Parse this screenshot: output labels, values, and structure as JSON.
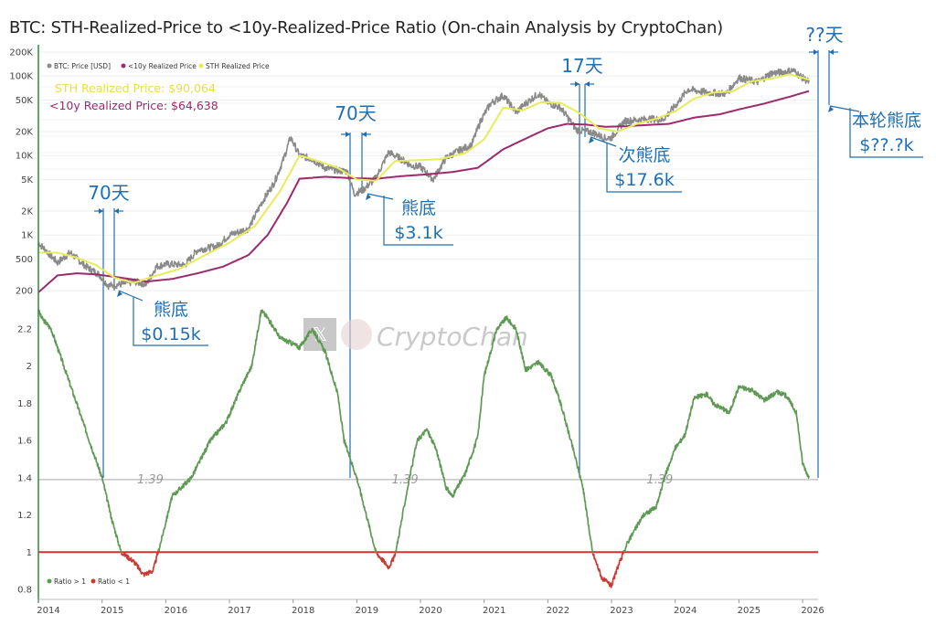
{
  "title": "BTC: STH-Realized-Price to <10y-Realized-Price Ratio (On-chain Analysis by CryptoChan)",
  "colors": {
    "price": "#8a8a8a",
    "sth": "#e8ec5a",
    "lt10y": "#9b2a6e",
    "ratio_up": "#5f9a55",
    "ratio_down": "#c93a32",
    "ref_line": "#d4332c",
    "annotation": "#1f6fb2",
    "sth_label": "#e6e04a",
    "lt10y_label": "#9b2a6e"
  },
  "watermark": {
    "text": "CryptoChan",
    "icon": "x-logo-icon"
  },
  "price_labels": {
    "sth": "STH Realized Price: $90,064",
    "lt10y": "<10y Realized Price: $64,638"
  },
  "annotations": {
    "d70_2015": "70天",
    "d70_2018": "70天",
    "d17_2022": "17天",
    "dqq_2026": "??天",
    "bottom_2015_a": "熊底",
    "bottom_2015_b": "$0.15k",
    "bottom_2018_a": "熊底",
    "bottom_2018_b": "$3.1k",
    "bottom_2022_a": "次熊底",
    "bottom_2022_b": "$17.6k",
    "bottom_now_a": "本轮熊底",
    "bottom_now_b": "$??.?k"
  },
  "chart_data": [
    {
      "type": "line",
      "panel": "price",
      "yscale": "log",
      "ylim": [
        150,
        200000
      ],
      "y_ticks": [
        "200K",
        "100K",
        "50K",
        "20K",
        "10K",
        "5K",
        "2K",
        "1K",
        "500",
        "200"
      ],
      "legend": [
        "BTC: Price [USD]",
        "<10y Realized Price",
        "STH Realized Price"
      ],
      "legend_placement": "top-left",
      "series": [
        {
          "name": "BTC: Price [USD]",
          "x": [
            2014.0,
            2014.15,
            2014.3,
            2014.5,
            2014.75,
            2014.95,
            2015.1,
            2015.3,
            2015.5,
            2015.7,
            2015.85,
            2016.0,
            2016.3,
            2016.5,
            2016.8,
            2017.0,
            2017.3,
            2017.5,
            2017.7,
            2017.85,
            2017.96,
            2018.1,
            2018.3,
            2018.5,
            2018.7,
            2018.85,
            2018.96,
            2019.1,
            2019.3,
            2019.5,
            2019.7,
            2019.85,
            2020.0,
            2020.2,
            2020.4,
            2020.6,
            2020.8,
            2020.95,
            2021.1,
            2021.3,
            2021.5,
            2021.65,
            2021.85,
            2022.0,
            2022.2,
            2022.45,
            2022.7,
            2022.9,
            2023.0,
            2023.2,
            2023.4,
            2023.6,
            2023.8,
            2024.0,
            2024.2,
            2024.5,
            2024.8,
            2025.0,
            2025.3,
            2025.5,
            2025.7,
            2025.85,
            2026.0,
            2026.1
          ],
          "values": [
            800,
            600,
            450,
            600,
            400,
            320,
            230,
            240,
            260,
            240,
            400,
            430,
            420,
            650,
            720,
            1000,
            1200,
            2500,
            4500,
            9000,
            17000,
            10000,
            9000,
            7000,
            6500,
            6300,
            3300,
            3700,
            5200,
            11000,
            9000,
            7500,
            7200,
            5000,
            9300,
            11500,
            13500,
            28000,
            45000,
            57000,
            35000,
            45000,
            60000,
            46000,
            40000,
            21000,
            19500,
            16500,
            16800,
            27000,
            28000,
            29000,
            28000,
            42000,
            68000,
            62000,
            60000,
            95000,
            84000,
            108000,
            112000,
            118000,
            95000,
            84000
          ]
        },
        {
          "name": "STH Realized Price",
          "x": [
            2014.0,
            2014.3,
            2014.6,
            2014.9,
            2015.2,
            2015.5,
            2015.8,
            2016.2,
            2016.6,
            2017.0,
            2017.4,
            2017.8,
            2018.1,
            2018.4,
            2018.7,
            2019.0,
            2019.3,
            2019.6,
            2019.9,
            2020.3,
            2020.7,
            2021.0,
            2021.3,
            2021.6,
            2021.9,
            2022.2,
            2022.5,
            2022.8,
            2023.1,
            2023.4,
            2023.7,
            2024.0,
            2024.3,
            2024.6,
            2024.9,
            2025.2,
            2025.5,
            2025.8,
            2026.1
          ],
          "values": [
            600,
            600,
            520,
            420,
            290,
            250,
            300,
            370,
            550,
            800,
            1300,
            3600,
            10000,
            8500,
            7000,
            5000,
            4800,
            8500,
            8700,
            9000,
            10700,
            16000,
            40000,
            37000,
            47000,
            46000,
            34000,
            22000,
            20000,
            25000,
            29000,
            36000,
            52000,
            62000,
            64000,
            86000,
            92000,
            105000,
            90064
          ]
        },
        {
          "name": "<10y Realized Price",
          "x": [
            2014.0,
            2014.3,
            2014.6,
            2014.9,
            2015.3,
            2015.7,
            2016.1,
            2016.5,
            2016.9,
            2017.3,
            2017.6,
            2017.9,
            2018.1,
            2018.5,
            2018.9,
            2019.3,
            2019.7,
            2020.1,
            2020.5,
            2020.9,
            2021.3,
            2021.7,
            2022.0,
            2022.3,
            2022.6,
            2022.9,
            2023.2,
            2023.6,
            2023.9,
            2024.3,
            2024.7,
            2025.0,
            2025.4,
            2025.8,
            2026.1
          ],
          "values": [
            190,
            310,
            330,
            320,
            290,
            260,
            280,
            330,
            400,
            560,
            1000,
            2500,
            5100,
            5400,
            5200,
            5100,
            5500,
            5800,
            6200,
            7000,
            12000,
            17000,
            22000,
            25000,
            24500,
            23000,
            23300,
            24300,
            25000,
            30000,
            33000,
            38000,
            45000,
            55000,
            64638
          ]
        }
      ]
    },
    {
      "type": "line",
      "panel": "ratio",
      "ylim": [
        0.78,
        2.42
      ],
      "y_ticks": [
        "2.2",
        "2",
        "1.8",
        "1.6",
        "1.4",
        "1.2",
        "1",
        "0.8"
      ],
      "legend": [
        "Ratio > 1",
        "Ratio < 1"
      ],
      "legend_placement": "bottom-left",
      "reference_lines": [
        {
          "value": 1.0,
          "color": "#d4332c"
        },
        {
          "value": 1.39,
          "label": "1.39"
        }
      ],
      "series": [
        {
          "name": "Ratio",
          "x": [
            2014.0,
            2014.05,
            2014.2,
            2014.4,
            2014.6,
            2014.8,
            2015.0,
            2015.15,
            2015.3,
            2015.5,
            2015.65,
            2015.8,
            2015.92,
            2016.1,
            2016.4,
            2016.7,
            2016.95,
            2017.2,
            2017.35,
            2017.5,
            2017.6,
            2017.8,
            2018.0,
            2018.1,
            2018.3,
            2018.5,
            2018.7,
            2018.8,
            2019.0,
            2019.15,
            2019.3,
            2019.5,
            2019.6,
            2019.8,
            2019.95,
            2020.1,
            2020.25,
            2020.4,
            2020.5,
            2020.7,
            2020.9,
            2021.0,
            2021.2,
            2021.35,
            2021.5,
            2021.65,
            2021.85,
            2022.05,
            2022.2,
            2022.4,
            2022.55,
            2022.7,
            2022.85,
            2023.0,
            2023.1,
            2023.25,
            2023.5,
            2023.7,
            2023.85,
            2024.0,
            2024.15,
            2024.3,
            2024.5,
            2024.6,
            2024.85,
            2025.0,
            2025.2,
            2025.4,
            2025.6,
            2025.75,
            2025.9,
            2026.0,
            2026.1
          ],
          "values": [
            2.3,
            2.26,
            2.2,
            2.0,
            1.8,
            1.6,
            1.4,
            1.18,
            1.0,
            0.95,
            0.88,
            0.9,
            1.05,
            1.3,
            1.4,
            1.6,
            1.7,
            1.9,
            2.0,
            2.3,
            2.26,
            2.15,
            2.12,
            2.1,
            2.2,
            2.08,
            1.85,
            1.6,
            1.4,
            1.2,
            1.0,
            0.92,
            0.98,
            1.35,
            1.6,
            1.66,
            1.55,
            1.35,
            1.3,
            1.42,
            1.62,
            1.95,
            2.2,
            2.26,
            2.2,
            1.98,
            2.02,
            1.95,
            1.8,
            1.55,
            1.35,
            1.0,
            0.86,
            0.82,
            0.92,
            1.05,
            1.2,
            1.24,
            1.42,
            1.56,
            1.63,
            1.83,
            1.85,
            1.8,
            1.75,
            1.89,
            1.87,
            1.82,
            1.86,
            1.84,
            1.75,
            1.48,
            1.4
          ]
        }
      ]
    }
  ]
}
